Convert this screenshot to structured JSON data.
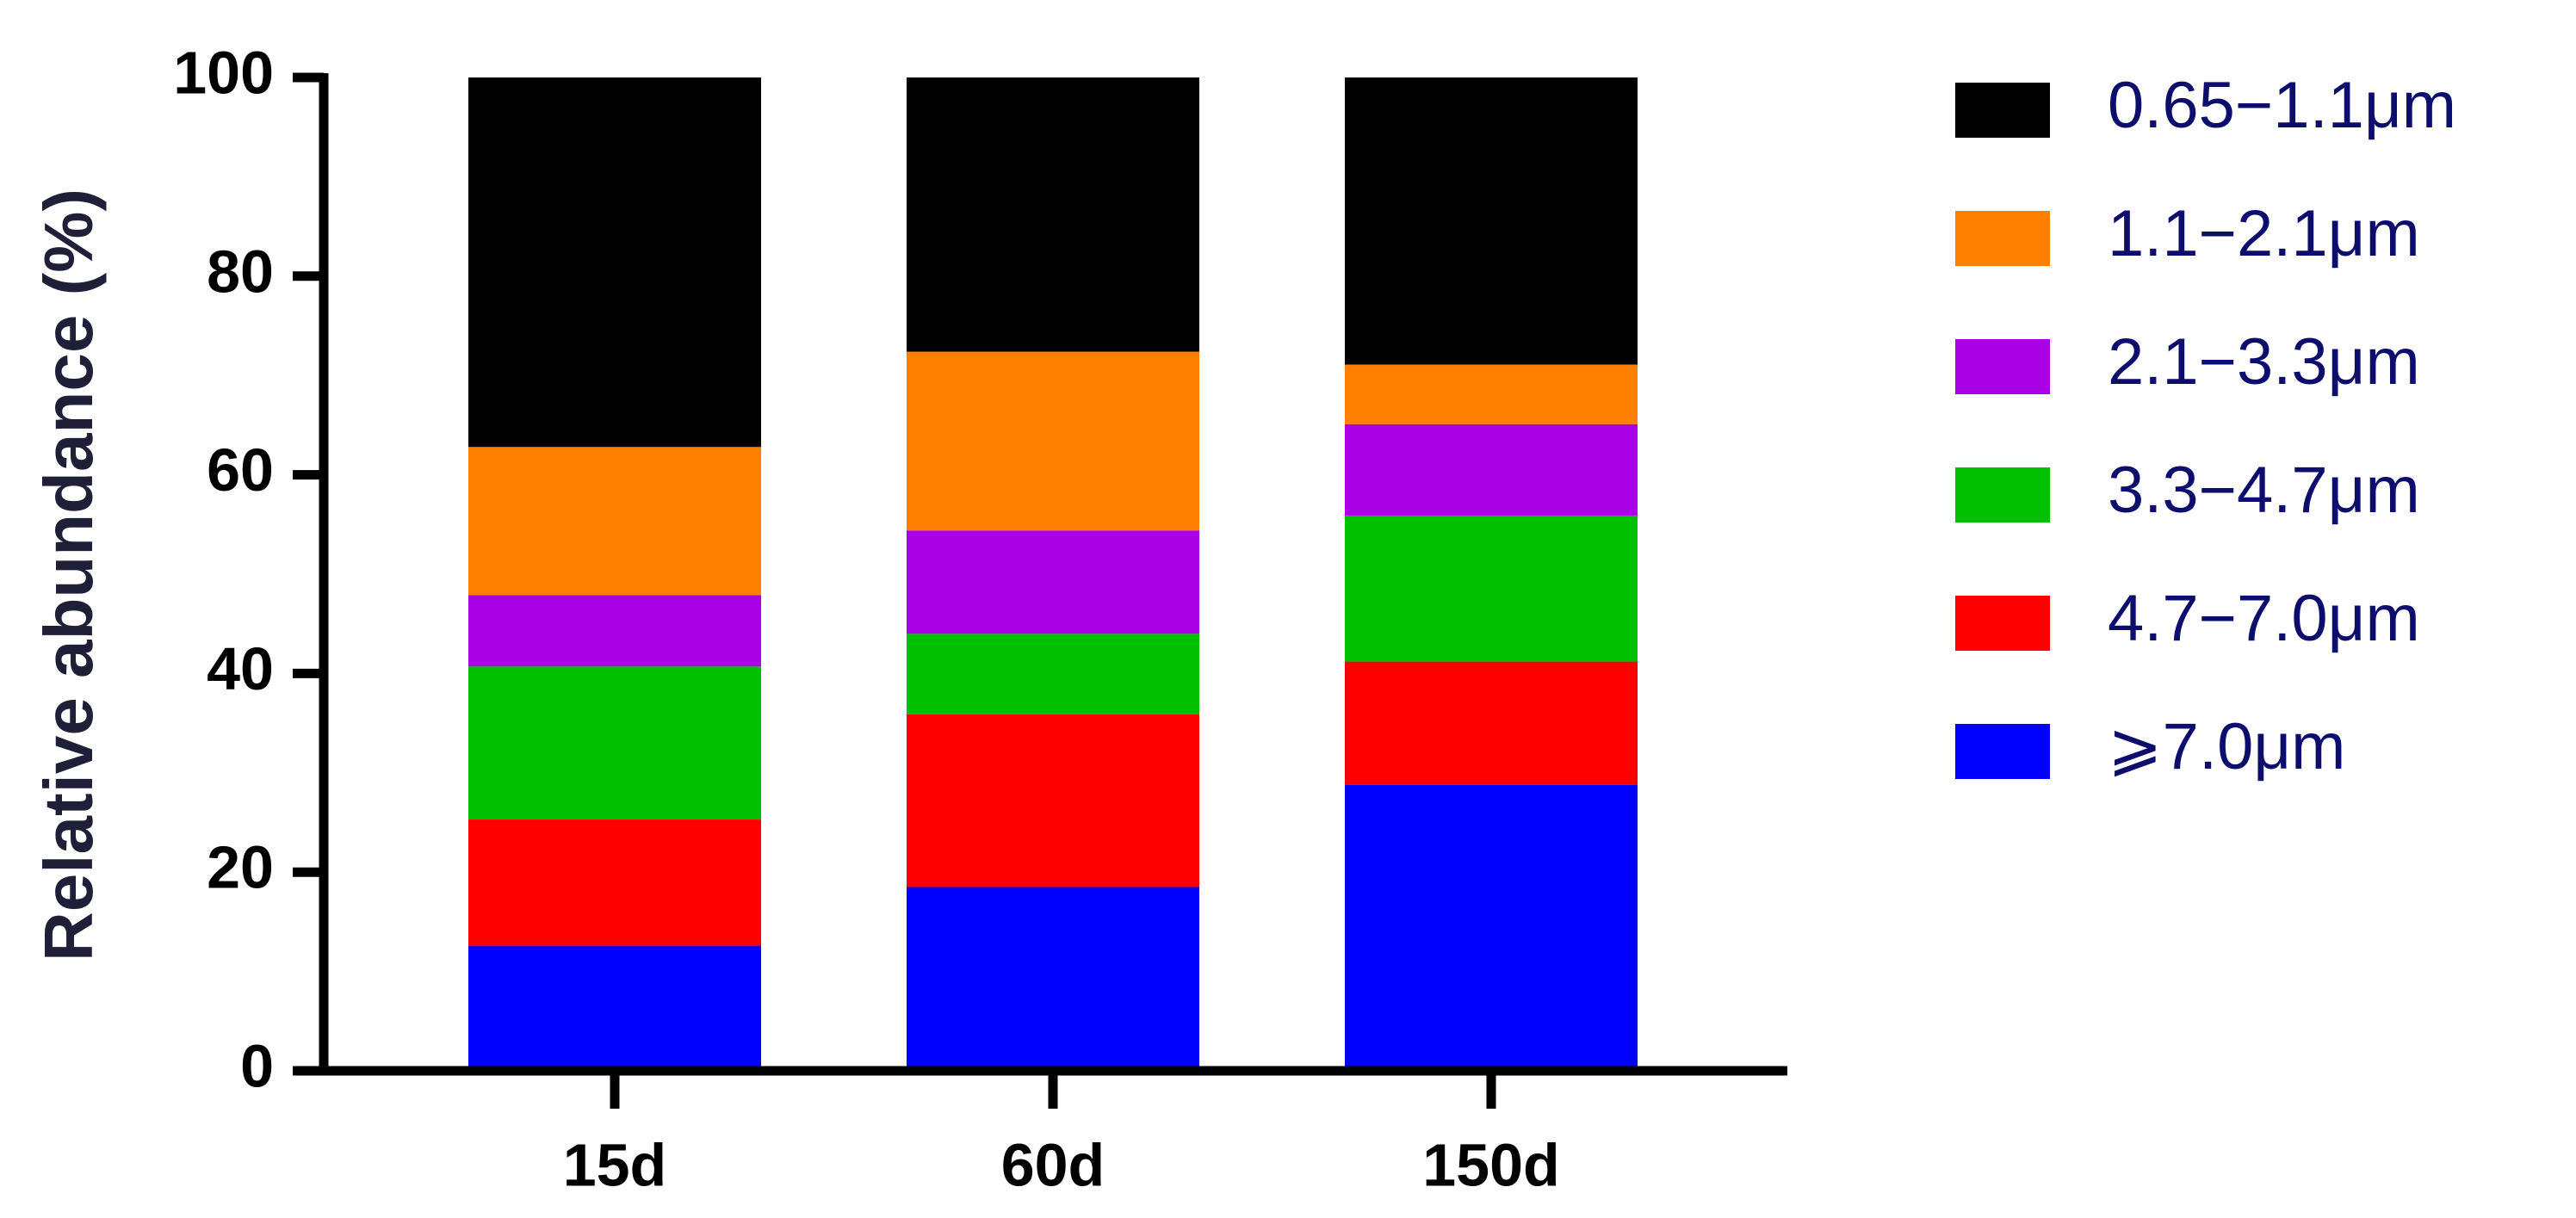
{
  "chart_data": {
    "type": "stacked_bar",
    "y_label": "Relative abundance (%)",
    "categories": [
      "15d",
      "60d",
      "150d"
    ],
    "ylim": [
      0,
      100
    ],
    "yticks": [
      0,
      20,
      40,
      60,
      80,
      100
    ],
    "series": [
      {
        "name": "0.65−1.1μm",
        "color": "#000000",
        "values": [
          37.2,
          27.6,
          28.9
        ]
      },
      {
        "name": "1.1−2.1μm",
        "color": "#ff8000",
        "values": [
          14.9,
          18.0,
          6.0
        ]
      },
      {
        "name": "2.1−3.3μm",
        "color": "#aa00e6",
        "values": [
          7.2,
          10.4,
          9.2
        ]
      },
      {
        "name": "3.3−4.7μm",
        "color": "#00c000",
        "values": [
          15.4,
          8.1,
          14.7
        ]
      },
      {
        "name": "4.7−7.0μm",
        "color": "#ff0000",
        "values": [
          12.7,
          17.4,
          12.4
        ]
      },
      {
        "name": "⩾7.0μm",
        "color": "#0000ff",
        "values": [
          12.6,
          18.5,
          28.8
        ]
      }
    ]
  }
}
